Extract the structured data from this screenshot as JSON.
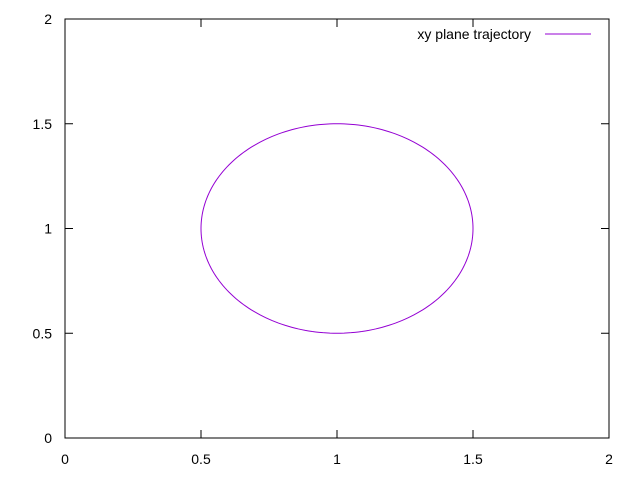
{
  "chart_data": {
    "type": "line",
    "title": "",
    "xlabel": "",
    "ylabel": "",
    "xlim": [
      0,
      2
    ],
    "ylim": [
      0,
      2
    ],
    "xticks": [
      "0",
      "0.5",
      "1",
      "1.5",
      "2"
    ],
    "yticks": [
      "0",
      "0.5",
      "1",
      "1.5",
      "2"
    ],
    "grid": false,
    "legend_position": "top-right",
    "series": [
      {
        "name": "xy plane trajectory",
        "color": "#9400d3",
        "shape": "ellipse",
        "center": [
          1,
          1
        ],
        "radius_x": 0.5,
        "radius_y": 0.5,
        "x": [
          1.5,
          1.433,
          1.25,
          1.0,
          0.75,
          0.567,
          0.5,
          0.567,
          0.75,
          1.0,
          1.25,
          1.433,
          1.5
        ],
        "y": [
          1.0,
          1.25,
          1.433,
          1.5,
          1.433,
          1.25,
          1.0,
          0.75,
          0.567,
          0.5,
          0.567,
          0.75,
          1.0
        ]
      }
    ]
  }
}
